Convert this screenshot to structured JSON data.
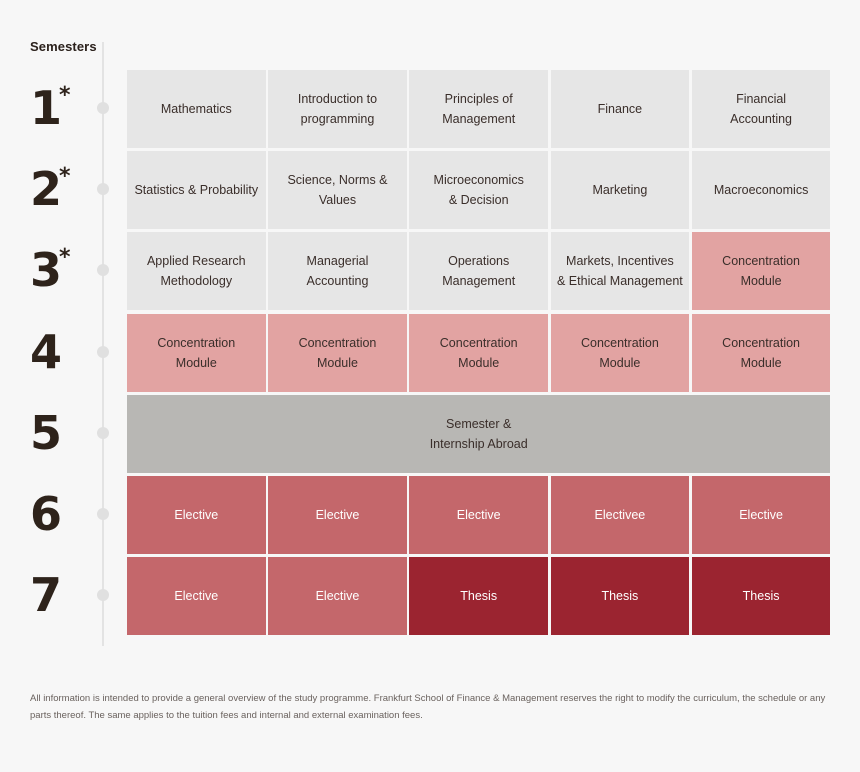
{
  "header": {
    "title": "Semesters"
  },
  "semesters": [
    {
      "number": "1",
      "star": "*",
      "modules": [
        "Mathematics",
        "Introduction to\nprogramming",
        "Principles of\nManagement",
        "Finance",
        "Financial\nAccounting"
      ],
      "kinds": [
        "grey",
        "grey",
        "grey",
        "grey",
        "grey"
      ]
    },
    {
      "number": "2",
      "star": "*",
      "modules": [
        "Statistics & Probability",
        "Science, Norms & Values",
        "Microeconomics\n& Decision",
        "Marketing",
        "Macroeconomics"
      ],
      "kinds": [
        "grey",
        "grey",
        "grey",
        "grey",
        "grey"
      ]
    },
    {
      "number": "3",
      "star": "*",
      "modules": [
        "Applied Research\nMethodology",
        "Managerial\nAccounting",
        "Operations\nManagement",
        "Markets, Incentives\n& Ethical Management",
        "Concentration\nModule"
      ],
      "kinds": [
        "grey",
        "grey",
        "grey",
        "grey",
        "pink"
      ]
    },
    {
      "number": "4",
      "star": "",
      "modules": [
        "Concentration\nModule",
        "Concentration\nModule",
        "Concentration\nModule",
        "Concentration\nModule",
        "Concentration\nModule"
      ],
      "kinds": [
        "pink",
        "pink",
        "pink",
        "pink",
        "pink"
      ]
    },
    {
      "number": "5",
      "star": "",
      "modules": [
        "Semester &\nInternship Abroad"
      ],
      "kinds": [
        "wide"
      ]
    },
    {
      "number": "6",
      "star": "",
      "modules": [
        "Elective",
        "Elective",
        "Elective",
        "Electivee",
        "Elective"
      ],
      "kinds": [
        "mid",
        "mid",
        "mid",
        "mid",
        "mid"
      ]
    },
    {
      "number": "7",
      "star": "",
      "modules": [
        "Elective",
        "Elective",
        "Thesis",
        "Thesis",
        "Thesis"
      ],
      "kinds": [
        "mid",
        "mid",
        "dark",
        "dark",
        "dark"
      ]
    }
  ],
  "colors": {
    "grey": "#e6e6e6",
    "pink": "#e2a3a2",
    "mid": "#c4676b",
    "dark": "#9b2430",
    "wide": "#b8b7b4"
  },
  "disclaimer": "All information is intended to provide a general overview of the study programme. Frankfurt School of Finance & Management reserves the right to modify the  curriculum, the schedule or any parts thereof. The same applies to the tuition fees and internal and external examination fees."
}
